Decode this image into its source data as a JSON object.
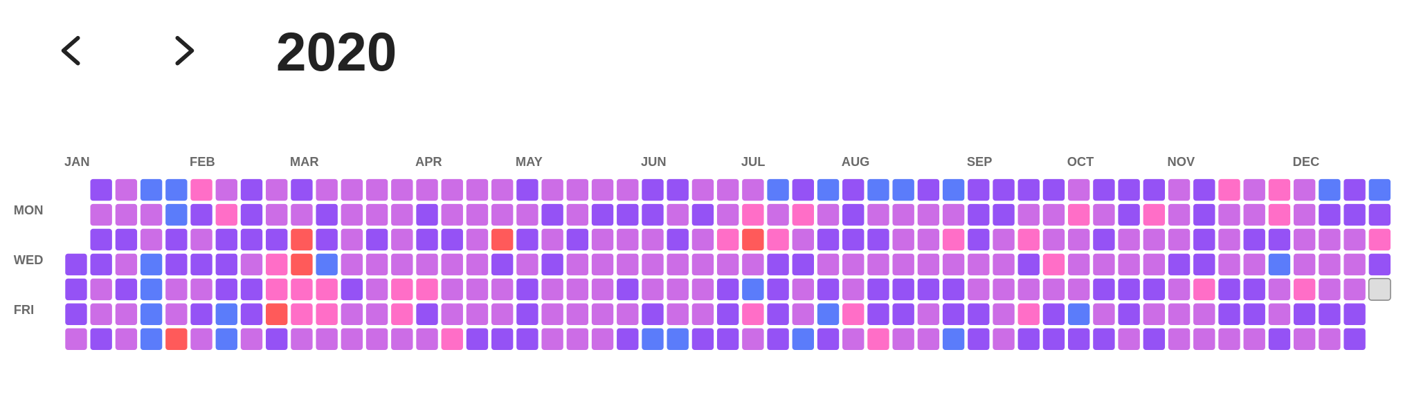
{
  "chart_data": {
    "type": "heatmap",
    "title": "2020",
    "rows": [
      null,
      "MON",
      null,
      "WED",
      null,
      "FRI",
      null
    ],
    "columns": [
      "JAN",
      null,
      null,
      null,
      null,
      "FEB",
      null,
      null,
      null,
      "MAR",
      null,
      null,
      null,
      null,
      "APR",
      null,
      null,
      null,
      "MAY",
      null,
      null,
      null,
      null,
      "JUN",
      null,
      null,
      null,
      "JUL",
      null,
      null,
      null,
      "AUG",
      null,
      null,
      null,
      null,
      "SEP",
      null,
      null,
      null,
      "OCT",
      null,
      null,
      null,
      "NOV",
      null,
      null,
      null,
      null,
      "DEC",
      null,
      null,
      null
    ],
    "colors": [
      "#dddddd",
      "#cc6de6",
      "#9552f5",
      "#5b7cfa",
      "#ff6ec7",
      "#ff5a5a"
    ],
    "values": [
      [
        null,
        2,
        1,
        3,
        3,
        4,
        1,
        2,
        1,
        2,
        1,
        1,
        1,
        1,
        1,
        1,
        1,
        1,
        2,
        1,
        1,
        1,
        1,
        2,
        2,
        1,
        1,
        1,
        3,
        2,
        3,
        2,
        3,
        3,
        2,
        3,
        2,
        2,
        2,
        2,
        1,
        2,
        2,
        2,
        1,
        2,
        4,
        1,
        4,
        1,
        3,
        2,
        3
      ],
      [
        null,
        1,
        1,
        1,
        3,
        2,
        4,
        2,
        1,
        1,
        2,
        1,
        1,
        1,
        2,
        1,
        1,
        1,
        1,
        2,
        1,
        2,
        2,
        2,
        1,
        2,
        1,
        4,
        1,
        4,
        1,
        2,
        1,
        1,
        1,
        1,
        2,
        2,
        1,
        1,
        4,
        1,
        2,
        4,
        1,
        2,
        1,
        1,
        4,
        1,
        2,
        2,
        2
      ],
      [
        null,
        2,
        2,
        1,
        2,
        1,
        2,
        2,
        2,
        5,
        2,
        1,
        2,
        1,
        2,
        2,
        1,
        5,
        2,
        1,
        2,
        1,
        1,
        1,
        2,
        1,
        4,
        5,
        4,
        1,
        2,
        2,
        2,
        1,
        1,
        4,
        2,
        1,
        4,
        1,
        1,
        2,
        1,
        1,
        1,
        2,
        1,
        2,
        2,
        1,
        1,
        1,
        4
      ],
      [
        2,
        2,
        1,
        3,
        2,
        2,
        2,
        1,
        4,
        5,
        3,
        1,
        1,
        1,
        1,
        1,
        1,
        2,
        1,
        2,
        1,
        1,
        1,
        1,
        1,
        1,
        1,
        1,
        2,
        2,
        1,
        1,
        1,
        1,
        1,
        1,
        1,
        1,
        2,
        4,
        1,
        1,
        1,
        1,
        2,
        2,
        1,
        1,
        3,
        1,
        1,
        1,
        2
      ],
      [
        2,
        1,
        2,
        3,
        1,
        1,
        2,
        2,
        4,
        4,
        4,
        2,
        1,
        4,
        4,
        1,
        1,
        1,
        2,
        1,
        1,
        1,
        2,
        1,
        1,
        1,
        2,
        3,
        2,
        1,
        2,
        1,
        2,
        2,
        2,
        2,
        1,
        1,
        1,
        1,
        1,
        2,
        2,
        2,
        1,
        4,
        2,
        2,
        1,
        4,
        1,
        1,
        0
      ],
      [
        2,
        1,
        1,
        3,
        1,
        2,
        3,
        2,
        5,
        4,
        4,
        1,
        1,
        4,
        2,
        1,
        1,
        1,
        2,
        1,
        1,
        1,
        1,
        2,
        1,
        1,
        2,
        4,
        2,
        1,
        3,
        4,
        2,
        2,
        1,
        2,
        2,
        1,
        4,
        2,
        3,
        1,
        2,
        1,
        1,
        1,
        2,
        2,
        1,
        2,
        2,
        2,
        null
      ],
      [
        1,
        2,
        1,
        3,
        5,
        1,
        3,
        1,
        2,
        1,
        1,
        1,
        1,
        1,
        1,
        4,
        2,
        2,
        2,
        1,
        1,
        1,
        2,
        3,
        3,
        2,
        2,
        1,
        2,
        3,
        2,
        1,
        4,
        1,
        1,
        3,
        2,
        1,
        2,
        2,
        2,
        2,
        1,
        2,
        1,
        1,
        1,
        1,
        2,
        1,
        1,
        2,
        null
      ]
    ]
  }
}
